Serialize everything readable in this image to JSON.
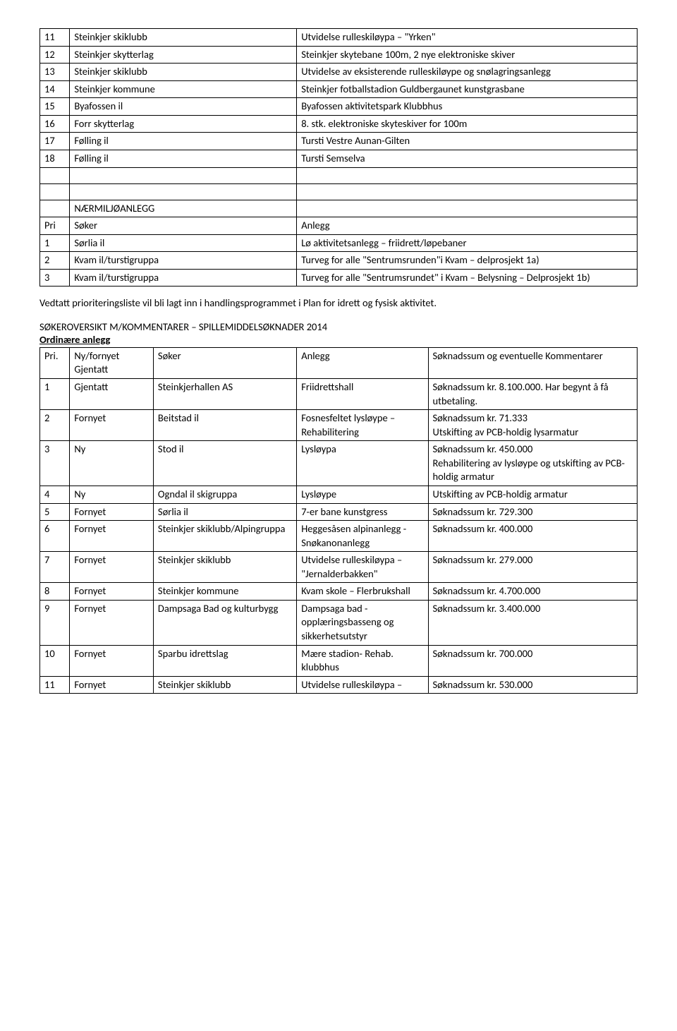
{
  "table1": {
    "rows": [
      {
        "n": "11",
        "s": "Steinkjer skiklubb",
        "a": "Utvidelse rulleskiløypa – \"Yrken\""
      },
      {
        "n": "12",
        "s": "Steinkjer skytterlag",
        "a": "Steinkjer skytebane 100m, 2 nye elektroniske skiver"
      },
      {
        "n": "13",
        "s": "Steinkjer skiklubb",
        "a": "Utvidelse av eksisterende rulleskiløype og snølagringsanlegg"
      },
      {
        "n": "14",
        "s": "Steinkjer kommune",
        "a": "Steinkjer fotballstadion Guldbergaunet kunstgrasbane"
      },
      {
        "n": "15",
        "s": "Byafossen il",
        "a": "Byafossen aktivitetspark Klubbhus"
      },
      {
        "n": "16",
        "s": "Forr skytterlag",
        "a": "8. stk. elektroniske skyteskiver for 100m"
      },
      {
        "n": "17",
        "s": "Følling il",
        "a": "Tursti Vestre Aunan-Gilten"
      },
      {
        "n": "18",
        "s": "Følling il",
        "a": "Tursti Semselva"
      }
    ],
    "section_label": "NÆRMILJØANLEGG",
    "header": {
      "c1": "Pri",
      "c2": "Søker",
      "c3": "Anlegg"
    },
    "rows2": [
      {
        "n": "1",
        "s": "Sørlia il",
        "a": "Lø aktivitetsanlegg – friidrett/løpebaner"
      },
      {
        "n": "2",
        "s": "Kvam il/turstigruppa",
        "a": "Turveg for alle \"Sentrumsrunden\"i Kvam – delprosjekt 1a)"
      },
      {
        "n": "3",
        "s": "Kvam il/turstigruppa",
        "a": "Turveg for alle \"Sentrumsrundet\" i Kvam – Belysning – Delprosjekt 1b)"
      }
    ]
  },
  "para1": "Vedtatt prioriteringsliste vil bli lagt inn i handlingsprogrammet i Plan for idrett og fysisk aktivitet.",
  "heading2": "SØKEROVERSIKT M/KOMMENTARER – SPILLEMIDDELSØKNADER 2014",
  "subheading": "Ordinære anlegg",
  "table2": {
    "header": {
      "c1": "Pri.",
      "c2": "Ny/fornyet Gjentatt",
      "c3": "Søker",
      "c4": "Anlegg",
      "c5": "Søknadssum og eventuelle Kommentarer"
    },
    "rows": [
      {
        "n": "1",
        "t": "Gjentatt",
        "s": "Steinkjerhallen AS",
        "a": "Friidrettshall",
        "k": "Søknadssum kr. 8.100.000. Har begynt å få utbetaling."
      },
      {
        "n": "2",
        "t": "Fornyet",
        "s": "Beitstad il",
        "a": "Fosnesfeltet lysløype – Rehabilitering",
        "k": "Søknadssum kr. 71.333\nUtskifting av PCB-holdig lysarmatur"
      },
      {
        "n": "3",
        "t": "Ny",
        "s": "Stod il",
        "a": "Lysløypa",
        "k": "Søknadssum kr. 450.000\nRehabilitering av lysløype og utskifting av PCB-holdig armatur"
      },
      {
        "n": "4",
        "t": "Ny",
        "s": "Ogndal il skigruppa",
        "a": "Lysløype",
        "k": "Utskifting av PCB-holdig armatur"
      },
      {
        "n": "5",
        "t": "Fornyet",
        "s": "Sørlia il",
        "a": "7-er bane kunstgress",
        "k": "Søknadssum kr. 729.300"
      },
      {
        "n": "6",
        "t": "Fornyet",
        "s": "Steinkjer skiklubb/Alpingruppa",
        "a": "Heggesåsen alpinanlegg - Snøkanonanlegg",
        "k": "Søknadssum kr. 400.000"
      },
      {
        "n": "7",
        "t": "Fornyet",
        "s": "Steinkjer skiklubb",
        "a": "Utvidelse rulleskiløypa – \"Jernalderbakken\"",
        "k": "Søknadssum kr. 279.000"
      },
      {
        "n": "8",
        "t": "Fornyet",
        "s": "Steinkjer kommune",
        "a": "Kvam skole – Flerbrukshall",
        "k": "Søknadssum kr. 4.700.000"
      },
      {
        "n": "9",
        "t": "Fornyet",
        "s": "Dampsaga Bad og kulturbygg",
        "a": "Dampsaga bad - opplæringsbasseng og sikkerhetsutstyr",
        "k": "Søknadssum kr. 3.400.000"
      },
      {
        "n": "10",
        "t": "Fornyet",
        "s": "Sparbu idrettslag",
        "a": "Mære stadion- Rehab. klubbhus",
        "k": "Søknadssum kr. 700.000"
      },
      {
        "n": "11",
        "t": "Fornyet",
        "s": "Steinkjer skiklubb",
        "a": "Utvidelse rulleskiløypa –",
        "k": "Søknadssum kr. 530.000"
      }
    ]
  }
}
